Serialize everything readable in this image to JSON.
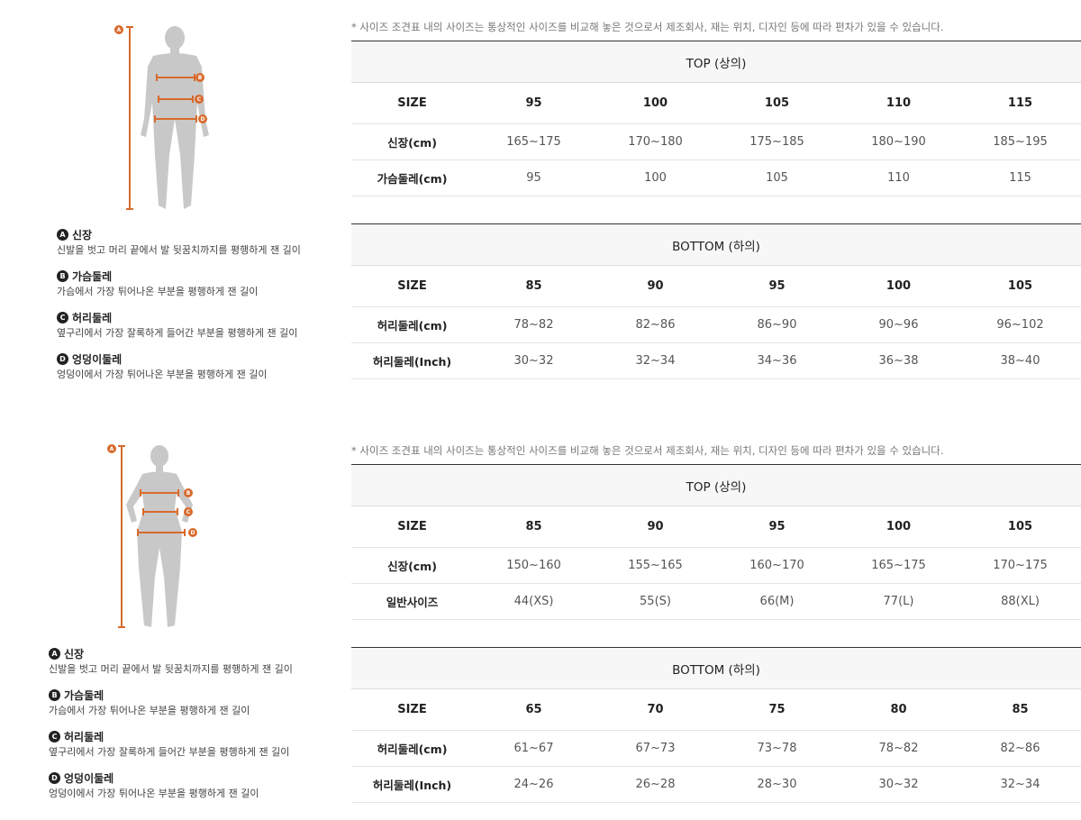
{
  "sections": [
    {
      "figure": "male-figure",
      "legend": [
        {
          "badge": "A",
          "title": "신장",
          "desc": "신발을 벗고 머리 끝에서 발 뒷꿈치까지를 평행하게 잰 길이"
        },
        {
          "badge": "B",
          "title": "가슴둘레",
          "desc": "가슴에서 가장 튀어나온 부분을 평행하게 잰 길이"
        },
        {
          "badge": "C",
          "title": "허리둘레",
          "desc": "옆구리에서 가장 잘록하게 들어간 부분을 평행하게 잰 길이"
        },
        {
          "badge": "D",
          "title": "엉덩이둘레",
          "desc": "엉덩이에서 가장 튀어나온 부분을 평행하게 잰 길이"
        }
      ],
      "note": "* 사이즈 조견표 내의 사이즈는 통상적인 사이즈를 비교해 놓은 것으로서 제조회사, 재는 위치, 디자인 등에 따라 편차가 있을 수 있습니다.",
      "top": {
        "title": "TOP (상의)",
        "header": [
          "SIZE",
          "95",
          "100",
          "105",
          "110",
          "115"
        ],
        "rows": [
          [
            "신장(cm)",
            "165~175",
            "170~180",
            "175~185",
            "180~190",
            "185~195"
          ],
          [
            "가슴둘레(cm)",
            "95",
            "100",
            "105",
            "110",
            "115"
          ]
        ]
      },
      "bottom": {
        "title": "BOTTOM (하의)",
        "header": [
          "SIZE",
          "85",
          "90",
          "95",
          "100",
          "105"
        ],
        "rows": [
          [
            "허리둘레(cm)",
            "78~82",
            "82~86",
            "86~90",
            "90~96",
            "96~102"
          ],
          [
            "허리둘레(Inch)",
            "30~32",
            "32~34",
            "34~36",
            "36~38",
            "38~40"
          ]
        ]
      }
    },
    {
      "figure": "female-figure",
      "legend": [
        {
          "badge": "A",
          "title": "신장",
          "desc": "신발을 벗고 머리 끝에서 발 뒷꿈치까지를 평행하게 잰 길이"
        },
        {
          "badge": "B",
          "title": "가슴둘레",
          "desc": "가슴에서 가장 튀어나온 부분을 평행하게 잰 길이"
        },
        {
          "badge": "C",
          "title": "허리둘레",
          "desc": "옆구리에서 가장 잘록하게 들어간 부분을 평행하게 잰 길이"
        },
        {
          "badge": "D",
          "title": "엉덩이둘레",
          "desc": "엉덩이에서 가장 튀어나온 부분을 평행하게 잰 길이"
        }
      ],
      "note": "* 사이즈 조견표 내의 사이즈는 통상적인 사이즈를 비교해 놓은 것으로서 제조회사, 재는 위치, 디자인 등에 따라 편차가 있을 수 있습니다.",
      "top": {
        "title": "TOP (상의)",
        "header": [
          "SIZE",
          "85",
          "90",
          "95",
          "100",
          "105"
        ],
        "rows": [
          [
            "신장(cm)",
            "150~160",
            "155~165",
            "160~170",
            "165~175",
            "170~175"
          ],
          [
            "일반사이즈",
            "44(XS)",
            "55(S)",
            "66(M)",
            "77(L)",
            "88(XL)"
          ]
        ]
      },
      "bottom": {
        "title": "BOTTOM (하의)",
        "header": [
          "SIZE",
          "65",
          "70",
          "75",
          "80",
          "85"
        ],
        "rows": [
          [
            "허리둘레(cm)",
            "61~67",
            "67~73",
            "73~78",
            "78~82",
            "82~86"
          ],
          [
            "허리둘레(Inch)",
            "24~26",
            "26~28",
            "28~30",
            "30~32",
            "32~34"
          ]
        ]
      }
    }
  ],
  "colors": {
    "accent": "#d86a2c",
    "figure": "#c8c8c8",
    "badge": "#222222"
  }
}
